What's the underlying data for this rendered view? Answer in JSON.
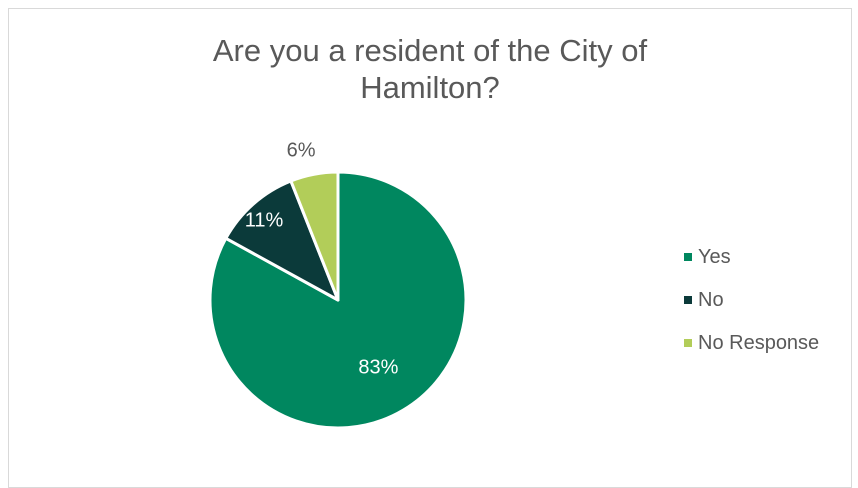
{
  "chart_data": {
    "type": "pie",
    "title": "Are you a resident of the City of Hamilton?",
    "title_lines": [
      "Are you a resident of the City of",
      "Hamilton?"
    ],
    "slices": [
      {
        "name": "Yes",
        "value": 83,
        "label": "83%",
        "color": "#00875f",
        "label_color": "#ffffff"
      },
      {
        "name": "No",
        "value": 11,
        "label": "11%",
        "color": "#0b3a3a",
        "label_color": "#ffffff"
      },
      {
        "name": "No Response",
        "value": 6,
        "label": "6%",
        "color": "#b2cd59",
        "label_color": "#595959"
      }
    ],
    "legend_position": "right",
    "start": "12 o'clock, counter-clockwise from No Response"
  }
}
